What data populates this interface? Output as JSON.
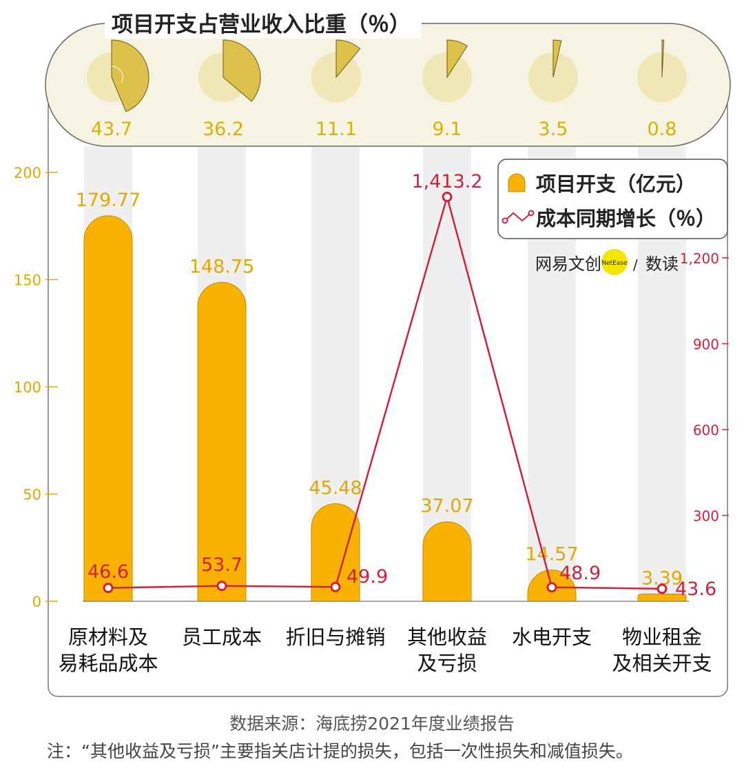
{
  "colors": {
    "bar": "#F9B200",
    "bar_stroke": "#C08A00",
    "line": "#D0213C",
    "left_axis": "#E0A800",
    "right_axis": "#D0213C",
    "pie_bg": "#F0E6B6",
    "pie_fill": "#DCC24A",
    "pie_label": "#D9B100",
    "stripe": "#EFEFEF",
    "panel_bg": "#F7F3E3",
    "frame": "#777777",
    "logo_yellow": "#F5E500"
  },
  "pie_panel": {
    "title": "项目开支占营业收入比重（％）"
  },
  "legend": {
    "bar_label": "项目开支（亿元）",
    "line_label": "成本同期增长（％）"
  },
  "logo": {
    "brand": "网易文创",
    "badge": "NetEase",
    "slash": "/",
    "product": "数读"
  },
  "chart_data": {
    "type": "bar",
    "categories": [
      [
        "原材料及",
        "易耗品成本"
      ],
      [
        "员工成本"
      ],
      [
        "折旧与摊销"
      ],
      [
        "其他收益",
        "及亏损"
      ],
      [
        "水电开支"
      ],
      [
        "物业租金",
        "及相关开支"
      ]
    ],
    "series": [
      {
        "name": "项目开支（亿元）",
        "type": "bar",
        "axis": "left",
        "values": [
          179.77,
          148.75,
          45.48,
          37.07,
          14.57,
          3.39
        ],
        "labels": [
          "179.77",
          "148.75",
          "45.48",
          "37.07",
          "14.57",
          "3.39"
        ]
      },
      {
        "name": "成本同期增长（％）",
        "type": "line",
        "axis": "right",
        "values": [
          46.6,
          53.7,
          49.9,
          1413.2,
          48.9,
          43.6
        ],
        "labels": [
          "46.6",
          "53.7",
          "49.9",
          "1,413.2",
          "48.9",
          "43.6"
        ]
      },
      {
        "name": "项目开支占营业收入比重（％）",
        "type": "pie",
        "values": [
          43.7,
          36.2,
          11.1,
          9.1,
          3.5,
          0.8
        ],
        "labels": [
          "43.7",
          "36.2",
          "11.1",
          "9.1",
          "3.5",
          "0.8"
        ]
      }
    ],
    "left_axis": {
      "ylim": [
        0,
        200
      ],
      "ticks": [
        0,
        50,
        100,
        150,
        200
      ]
    },
    "right_axis": {
      "ylim": [
        0,
        1400
      ],
      "ticks": [
        "300",
        "600",
        "900",
        "1,200"
      ],
      "tick_values": [
        300,
        600,
        900,
        1200
      ]
    },
    "legend_position": "top-right",
    "grid": false
  },
  "footer": {
    "source": "数据来源：海底捞2021年度业绩报告",
    "note": "注：“其他收益及亏损”主要指关店计提的损失，包括一次性损失和减值损失。"
  }
}
